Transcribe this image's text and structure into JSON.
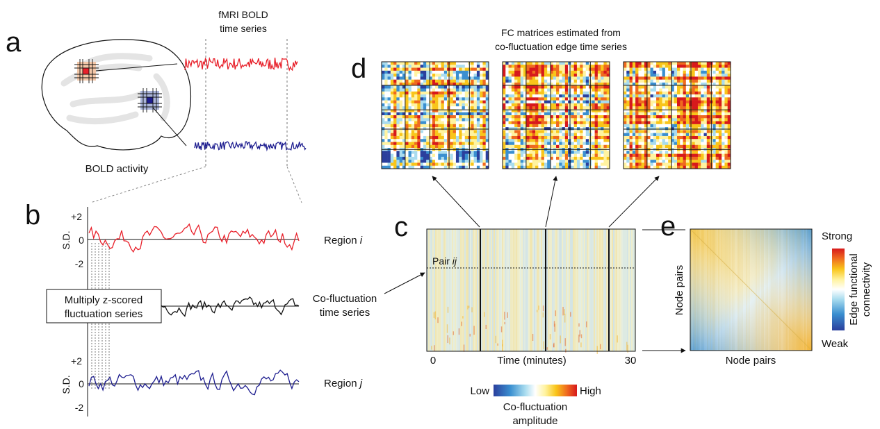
{
  "panels": {
    "a": "a",
    "b": "b",
    "c": "c",
    "d": "d",
    "e": "e"
  },
  "panel_a": {
    "series_title_line1": "fMRI BOLD",
    "series_title_line2": "time series",
    "caption": "BOLD activity",
    "colors": {
      "region_i": "#e8202a",
      "region_j": "#1d1d8f"
    }
  },
  "panel_b": {
    "y_ticks": [
      "+2",
      "0",
      "-2"
    ],
    "y_label": "S.D.",
    "region_i_label": "Region ",
    "region_i_var": "i",
    "region_j_label": "Region ",
    "region_j_var": "j",
    "multiply_box_line1": "Multiply z-scored",
    "multiply_box_line2": "fluctuation series",
    "cofluct_label_line1": "Co-fluctuation",
    "cofluct_label_line2": "time series"
  },
  "panel_c": {
    "pair_label": "Pair ",
    "pair_var": "ij",
    "x_start": "0",
    "x_end": "30",
    "x_label": "Time (minutes)",
    "colorbar_low": "Low",
    "colorbar_high": "High",
    "colorbar_title_line1": "Co-fluctuation",
    "colorbar_title_line2": "amplitude"
  },
  "panel_d": {
    "title_line1": "FC matrices estimated from",
    "title_line2": "co-fluctuation edge time series"
  },
  "panel_e": {
    "y_label": "Node pairs",
    "x_label": "Node pairs",
    "colorbar_strong": "Strong",
    "colorbar_weak": "Weak",
    "colorbar_title_line1": "Edge functional",
    "colorbar_title_line2": "connectivity"
  },
  "colormap": [
    "#2a3f9d",
    "#3a8fd0",
    "#a9dcef",
    "#ffffff",
    "#fff3a0",
    "#f9c51a",
    "#ef6a1f",
    "#d7191c"
  ]
}
